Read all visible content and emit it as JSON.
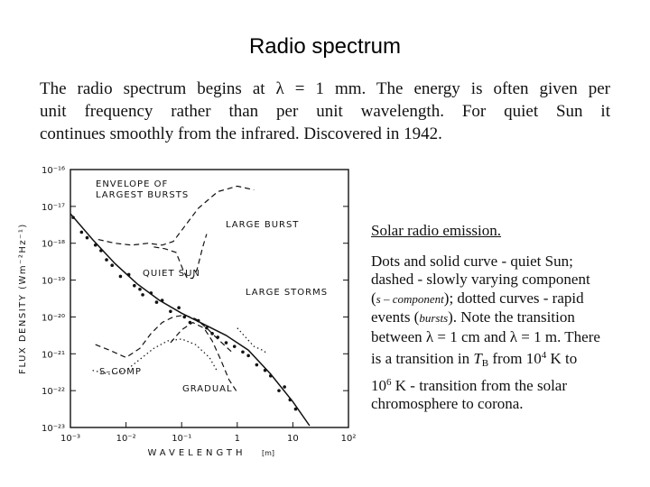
{
  "slide": {
    "title": "Radio spectrum",
    "intro_lines": [
      "The radio spectrum begins at λ = 1 mm. The energy is often given per",
      "unit frequency rather than per unit wavelength. For quiet Sun it",
      "continues smoothly from the infrared. Discovered in 1942."
    ]
  },
  "caption": {
    "heading": "Solar radio emission.",
    "l1": "Dots and solid curve - quiet Sun;",
    "l2": "dashed - slowly varying component",
    "l3a": "(",
    "l3b": "s – component",
    "l3c": "); dotted curves - rapid",
    "l4a": "events (",
    "l4b": "bursts",
    "l4c": "). Note the transition",
    "l5": "between λ = 1 cm and λ = 1 m. There",
    "l6a": "is a transition in ",
    "l6b": "T",
    "l6c": "B",
    "l6d": " from ",
    "l6e": "10",
    "l6f": "4",
    "l6g": " K to",
    "l7a": "10",
    "l7b": "6",
    "l7c": " K - transition from the solar",
    "l8": "chromosphere to corona."
  },
  "chart_data": {
    "type": "line",
    "xscale": "log",
    "yscale": "log",
    "xlim": [
      0.001,
      100
    ],
    "ylim": [
      1e-23,
      1e-16
    ],
    "x_ticks": [
      "10⁻³",
      "10⁻²",
      "10⁻¹",
      "1",
      "10",
      "10²"
    ],
    "x_tick_values": [
      -3,
      -2,
      -1,
      0,
      1,
      2
    ],
    "y_ticks": [
      "10⁻¹⁶",
      "10⁻¹⁷",
      "10⁻¹⁸",
      "10⁻¹⁹",
      "10⁻²⁰",
      "10⁻²¹",
      "10⁻²²",
      "10⁻²³"
    ],
    "y_tick_values": [
      -16,
      -17,
      -18,
      -19,
      -20,
      -21,
      -22,
      -23
    ],
    "xlabel": "WAVELENGTH",
    "xunit": "[m]",
    "ylabel": "FLUX DENSITY (Wm⁻²Hz⁻¹)",
    "annotations": {
      "envelope1": "ENVELOPE OF",
      "envelope2": "LARGEST BURSTS",
      "large_burst": "LARGE BURST",
      "quiet_sun": "QUIET SUN",
      "large_storms": "LARGE STORMS",
      "scomp": "S–COMP",
      "gradual": "GRADUAL"
    },
    "series": [
      {
        "name": "quiet-sun",
        "style": "solid",
        "points": [
          [
            -3.0,
            -17.2
          ],
          [
            -2.6,
            -17.9
          ],
          [
            -2.2,
            -18.55
          ],
          [
            -1.8,
            -19.1
          ],
          [
            -1.4,
            -19.55
          ],
          [
            -1.0,
            -19.9
          ],
          [
            -0.6,
            -20.2
          ],
          [
            -0.2,
            -20.5
          ],
          [
            0.2,
            -20.9
          ],
          [
            0.6,
            -21.55
          ],
          [
            1.0,
            -22.3
          ],
          [
            1.3,
            -22.95
          ]
        ]
      },
      {
        "name": "quiet-sun-dots",
        "style": "dots",
        "points": [
          [
            -2.95,
            -17.3
          ],
          [
            -2.8,
            -17.7
          ],
          [
            -2.7,
            -17.85
          ],
          [
            -2.55,
            -18.05
          ],
          [
            -2.45,
            -18.2
          ],
          [
            -2.35,
            -18.45
          ],
          [
            -2.25,
            -18.6
          ],
          [
            -2.1,
            -18.9
          ],
          [
            -1.95,
            -18.85
          ],
          [
            -1.85,
            -19.15
          ],
          [
            -1.75,
            -19.25
          ],
          [
            -1.7,
            -19.4
          ],
          [
            -1.55,
            -19.35
          ],
          [
            -1.45,
            -19.6
          ],
          [
            -1.35,
            -19.55
          ],
          [
            -1.2,
            -19.85
          ],
          [
            -1.05,
            -19.75
          ],
          [
            -0.95,
            -20.0
          ],
          [
            -0.85,
            -20.15
          ],
          [
            -0.7,
            -20.1
          ],
          [
            -0.55,
            -20.3
          ],
          [
            -0.45,
            -20.45
          ],
          [
            -0.35,
            -20.55
          ],
          [
            -0.2,
            -20.7
          ],
          [
            -0.05,
            -20.8
          ],
          [
            0.1,
            -20.95
          ],
          [
            0.2,
            -21.05
          ],
          [
            0.35,
            -21.3
          ],
          [
            0.5,
            -21.45
          ],
          [
            0.6,
            -21.6
          ],
          [
            0.75,
            -22.0
          ],
          [
            0.85,
            -21.9
          ],
          [
            0.95,
            -22.25
          ],
          [
            1.05,
            -22.5
          ]
        ]
      },
      {
        "name": "envelope-largest-bursts",
        "style": "dashed",
        "points": [
          [
            -2.5,
            -17.9
          ],
          [
            -2.2,
            -18.0
          ],
          [
            -1.9,
            -18.05
          ],
          [
            -1.6,
            -18.0
          ],
          [
            -1.35,
            -18.05
          ],
          [
            -1.15,
            -17.95
          ],
          [
            -0.95,
            -17.55
          ],
          [
            -0.7,
            -17.05
          ],
          [
            -0.35,
            -16.6
          ],
          [
            0.0,
            -16.45
          ],
          [
            0.3,
            -16.55
          ]
        ]
      },
      {
        "name": "large-burst",
        "style": "dashed",
        "points": [
          [
            -1.5,
            -18.1
          ],
          [
            -1.3,
            -18.15
          ],
          [
            -1.1,
            -18.25
          ],
          [
            -0.98,
            -18.7
          ],
          [
            -0.9,
            -18.95
          ],
          [
            -0.8,
            -18.95
          ],
          [
            -0.72,
            -18.7
          ],
          [
            -0.62,
            -18.1
          ],
          [
            -0.55,
            -17.75
          ]
        ]
      },
      {
        "name": "large-storms",
        "style": "dashed",
        "points": [
          [
            -1.2,
            -20.7
          ],
          [
            -1.0,
            -20.35
          ],
          [
            -0.8,
            -20.15
          ],
          [
            -0.6,
            -20.3
          ],
          [
            -0.45,
            -20.65
          ],
          [
            -0.3,
            -21.15
          ],
          [
            -0.15,
            -21.7
          ],
          [
            0.0,
            -22.05
          ]
        ]
      },
      {
        "name": "s-comp",
        "style": "dashed",
        "points": [
          [
            -2.55,
            -20.75
          ],
          [
            -2.3,
            -20.9
          ],
          [
            -2.0,
            -21.1
          ],
          [
            -1.75,
            -20.85
          ],
          [
            -1.55,
            -20.45
          ],
          [
            -1.35,
            -20.15
          ],
          [
            -1.15,
            -20.0
          ],
          [
            -0.95,
            -19.95
          ],
          [
            -0.75,
            -20.05
          ],
          [
            -0.55,
            -20.3
          ],
          [
            -0.35,
            -20.6
          ],
          [
            -0.1,
            -20.95
          ]
        ]
      },
      {
        "name": "gradual",
        "style": "dotted",
        "points": [
          [
            -2.6,
            -21.45
          ],
          [
            -2.3,
            -21.55
          ],
          [
            -2.0,
            -21.45
          ],
          [
            -1.75,
            -21.15
          ],
          [
            -1.5,
            -20.85
          ],
          [
            -1.25,
            -20.65
          ],
          [
            -1.0,
            -20.6
          ],
          [
            -0.75,
            -20.75
          ],
          [
            -0.5,
            -21.1
          ],
          [
            -0.35,
            -21.5
          ]
        ]
      },
      {
        "name": "rapid-events",
        "style": "dotted",
        "points": [
          [
            0.0,
            -20.3
          ],
          [
            0.15,
            -20.55
          ],
          [
            0.3,
            -20.8
          ],
          [
            0.45,
            -20.9
          ],
          [
            0.55,
            -21.0
          ]
        ]
      }
    ]
  }
}
